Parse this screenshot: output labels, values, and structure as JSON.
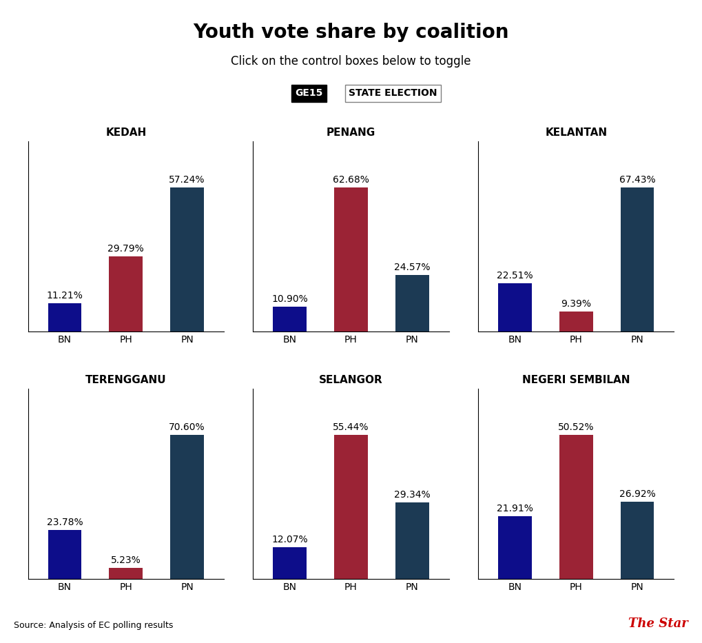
{
  "title": "Youth vote share by coalition",
  "subtitle": "Click on the control boxes below to toggle",
  "annotations": [
    "GE15",
    "STATE ELECTION"
  ],
  "source": "Source: Analysis of EC polling results",
  "credit": "The Star",
  "chart_data": [
    {
      "type": "bar",
      "title": "KEDAH",
      "categories": [
        "BN",
        "PH",
        "PN"
      ],
      "values": [
        11.21,
        29.79,
        57.24
      ],
      "value_labels": [
        "11.21%",
        "29.79%",
        "57.24%"
      ],
      "colors": [
        "#0d0d8a",
        "#9b2335",
        "#1c3a54"
      ],
      "ylim": [
        0,
        75.5568
      ],
      "yticks": [],
      "data_labels": true,
      "tick_labels": "x",
      "grid": false
    },
    {
      "type": "bar",
      "title": "PENANG",
      "categories": [
        "BN",
        "PH",
        "PN"
      ],
      "values": [
        10.9,
        62.68,
        24.57
      ],
      "value_labels": [
        "10.90%",
        "62.68%",
        "24.57%"
      ],
      "colors": [
        "#0d0d8a",
        "#9b2335",
        "#1c3a54"
      ],
      "ylim": [
        0,
        82.7376
      ],
      "yticks": [],
      "data_labels": true,
      "tick_labels": "x",
      "grid": false
    },
    {
      "type": "bar",
      "title": "KELANTAN",
      "categories": [
        "BN",
        "PH",
        "PN"
      ],
      "values": [
        22.51,
        9.39,
        67.43
      ],
      "value_labels": [
        "22.51%",
        "9.39%",
        "67.43%"
      ],
      "colors": [
        "#0d0d8a",
        "#9b2335",
        "#1c3a54"
      ],
      "ylim": [
        0,
        89.0076
      ],
      "yticks": [],
      "data_labels": true,
      "tick_labels": "x",
      "grid": false
    },
    {
      "type": "bar",
      "title": "TERENGGANU",
      "categories": [
        "BN",
        "PH",
        "PN"
      ],
      "values": [
        23.78,
        5.23,
        70.6
      ],
      "value_labels": [
        "23.78%",
        "5.23%",
        "70.60%"
      ],
      "colors": [
        "#0d0d8a",
        "#9b2335",
        "#1c3a54"
      ],
      "ylim": [
        0,
        93.192
      ],
      "yticks": [],
      "data_labels": true,
      "tick_labels": "x",
      "grid": false
    },
    {
      "type": "bar",
      "title": "SELANGOR",
      "categories": [
        "BN",
        "PH",
        "PN"
      ],
      "values": [
        12.07,
        55.44,
        29.34
      ],
      "value_labels": [
        "12.07%",
        "55.44%",
        "29.34%"
      ],
      "colors": [
        "#0d0d8a",
        "#9b2335",
        "#1c3a54"
      ],
      "ylim": [
        0,
        73.1808
      ],
      "yticks": [],
      "data_labels": true,
      "tick_labels": "x",
      "grid": false
    },
    {
      "type": "bar",
      "title": "NEGERI SEMBILAN",
      "categories": [
        "BN",
        "PH",
        "PN"
      ],
      "values": [
        21.91,
        50.52,
        26.92
      ],
      "value_labels": [
        "21.91%",
        "50.52%",
        "26.92%"
      ],
      "colors": [
        "#0d0d8a",
        "#9b2335",
        "#1c3a54"
      ],
      "ylim": [
        0,
        66.6864
      ],
      "yticks": [],
      "data_labels": true,
      "tick_labels": "x",
      "grid": false
    }
  ]
}
